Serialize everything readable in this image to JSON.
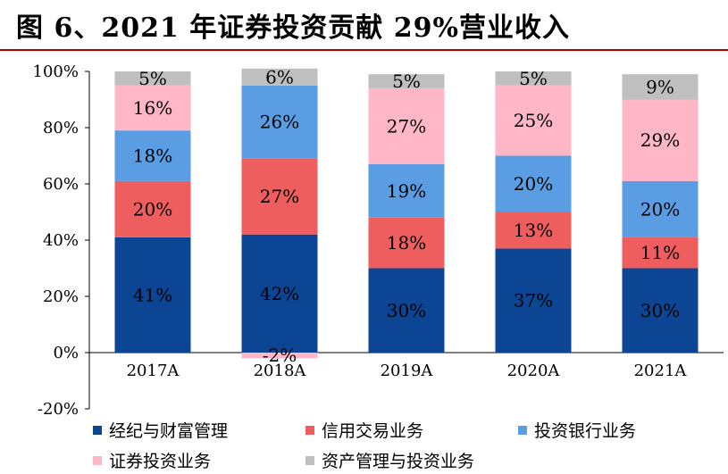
{
  "title": "图 6、2021 年证券投资贡献 29%营业收入",
  "chart_data": {
    "type": "bar",
    "stacked": true,
    "categories": [
      "2017A",
      "2018A",
      "2019A",
      "2020A",
      "2021A"
    ],
    "ylim": [
      -20,
      100
    ],
    "y_ticks": [
      "-20%",
      "0%",
      "20%",
      "40%",
      "60%",
      "80%",
      "100%"
    ],
    "series": [
      {
        "name": "经纪与财富管理",
        "color": "#0b4593",
        "values": [
          41,
          42,
          30,
          37,
          30
        ],
        "labels": [
          "41%",
          "42%",
          "30%",
          "37%",
          "30%"
        ]
      },
      {
        "name": "信用交易业务",
        "color": "#ee5e5e",
        "values": [
          20,
          27,
          18,
          13,
          11
        ],
        "labels": [
          "20%",
          "27%",
          "18%",
          "13%",
          "11%"
        ]
      },
      {
        "name": "投资银行业务",
        "color": "#5b9de3",
        "values": [
          18,
          26,
          19,
          20,
          20
        ],
        "labels": [
          "18%",
          "26%",
          "19%",
          "20%",
          "20%"
        ]
      },
      {
        "name": "证券投资业务",
        "color": "#ffb6c6",
        "values": [
          16,
          -2,
          27,
          25,
          29
        ],
        "labels": [
          "16%",
          "-2%",
          "27%",
          "25%",
          "29%"
        ]
      },
      {
        "name": "资产管理与投资业务",
        "color": "#bfbfbf",
        "values": [
          5,
          6,
          5,
          5,
          9
        ],
        "labels": [
          "5%",
          "6%",
          "5%",
          "5%",
          "9%"
        ]
      }
    ],
    "legend_position": "bottom",
    "grid": false
  }
}
